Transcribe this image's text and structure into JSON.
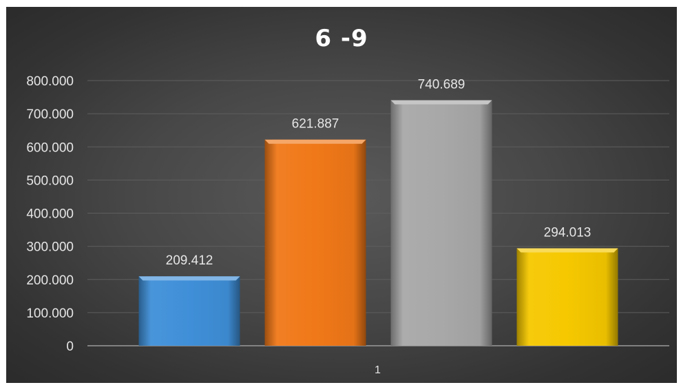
{
  "chart_data": {
    "type": "bar",
    "title": "6 -9",
    "categories": [
      "1"
    ],
    "series": [
      {
        "values": [
          209.412
        ],
        "label": "209.412",
        "color": "#3f8fd8"
      },
      {
        "values": [
          621.887
        ],
        "label": "621.887",
        "color": "#f07818"
      },
      {
        "values": [
          740.689
        ],
        "label": "740.689",
        "color": "#a8a8a8"
      },
      {
        "values": [
          294.013
        ],
        "label": "294.013",
        "color": "#f5c800"
      }
    ],
    "yticks": [
      "0",
      "100.000",
      "200.000",
      "300.000",
      "400.000",
      "500.000",
      "600.000",
      "700.000",
      "800.000"
    ],
    "ylim": [
      0,
      800
    ],
    "xlabel": "",
    "ylabel": "",
    "grid": true,
    "background": "#474747"
  }
}
